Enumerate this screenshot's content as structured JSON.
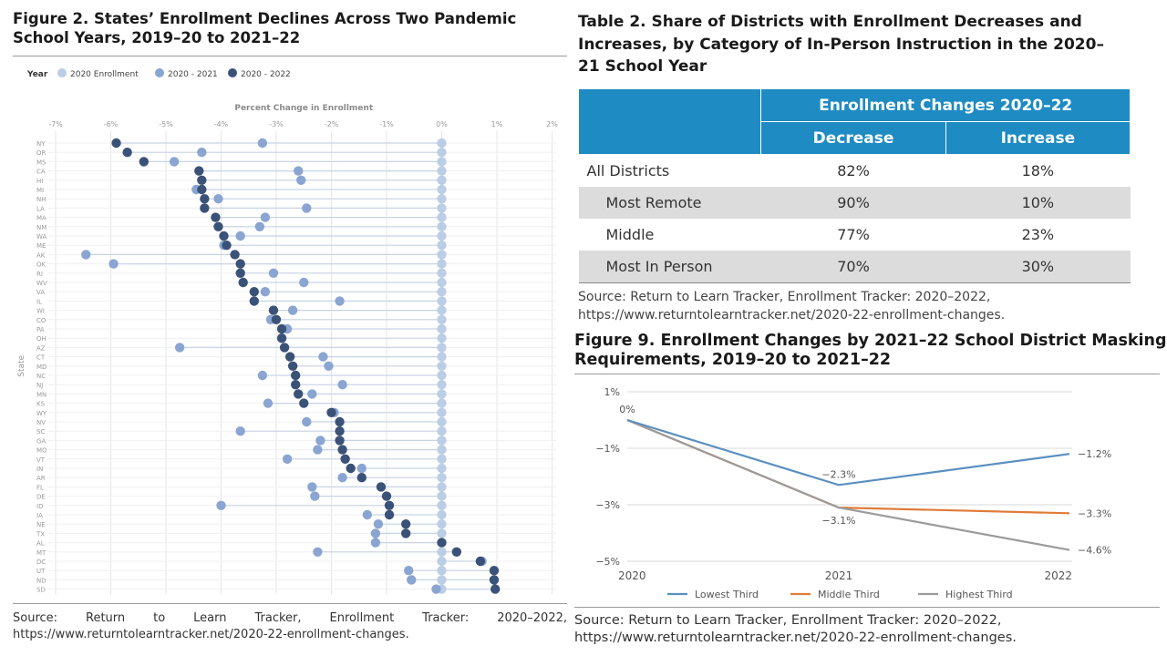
{
  "fig2": {
    "title": "Figure 2. States’ Enrollment Declines Across Two Pandemic School Years, 2019–20 to 2021–22",
    "source": "Source: Return to Learn Tracker, Enrollment Tracker: 2020–2022, https://www.returntolearntracker.net/2020-22-enrollment-changes."
  },
  "table2": {
    "title": "Table 2. Share of Districts with Enrollment Decreases and Increases, by Category of In-Person Instruction in the 2020–21 School Year",
    "header_group": "Enrollment Changes 2020–22",
    "col_decrease": "Decrease",
    "col_increase": "Increase",
    "rows": [
      {
        "label": "All Districts",
        "decrease": "82%",
        "increase": "18%"
      },
      {
        "label": "Most Remote",
        "decrease": "90%",
        "increase": "10%"
      },
      {
        "label": "Middle",
        "decrease": "77%",
        "increase": "23%"
      },
      {
        "label": "Most In Person",
        "decrease": "70%",
        "increase": "30%"
      }
    ],
    "source": "Source: Return to Learn Tracker, Enrollment Tracker: 2020–2022, https://www.returntolearntracker.net/2020-22-enrollment-changes."
  },
  "fig9": {
    "title": "Figure 9. Enrollment Changes by 2021–22 School District Masking Requirements, 2019–20 to 2021–22",
    "source": "Source: Return to Learn Tracker, Enrollment Tracker: 2020–2022, https://www.returntolearntracker.net/2020-22-enrollment-changes."
  },
  "chart_data": [
    {
      "type": "scatter",
      "xlabel": "Percent Change in Enrollment",
      "ylabel": "State",
      "legend_title": "Year",
      "legend_position": "top-left",
      "xlim": [
        -7,
        2
      ],
      "x_ticks": [
        "-7%",
        "-6%",
        "-5%",
        "-4%",
        "-3%",
        "-2%",
        "-1%",
        "0%",
        "1%",
        "2%"
      ],
      "grid": true,
      "colors": {
        "2020 Enrollment": "#bccde6",
        "2020 - 2021": "#8aa5d2",
        "2020 - 2022": "#3b5278"
      },
      "series_names": [
        "2020 Enrollment",
        "2020 - 2021",
        "2020 - 2022"
      ],
      "states": [
        "NY",
        "OR",
        "MS",
        "CA",
        "HI",
        "MI",
        "NH",
        "LA",
        "MA",
        "NM",
        "WA",
        "ME",
        "AK",
        "OK",
        "RI",
        "WV",
        "VA",
        "IL",
        "WI",
        "CO",
        "PA",
        "OH",
        "AZ",
        "CT",
        "MD",
        "NC",
        "NJ",
        "MN",
        "KS",
        "WY",
        "NV",
        "SC",
        "GA",
        "MO",
        "VT",
        "IN",
        "AR",
        "FL",
        "DE",
        "ID",
        "IA",
        "NE",
        "TX",
        "AL",
        "MT",
        "DC",
        "UT",
        "ND",
        "SD"
      ],
      "series": [
        {
          "name": "2020 Enrollment",
          "values": [
            0,
            0,
            0,
            0,
            0,
            0,
            0,
            0,
            0,
            0,
            0,
            0,
            0,
            0,
            0,
            0,
            0,
            0,
            0,
            0,
            0,
            0,
            0,
            0,
            0,
            0,
            0,
            0,
            0,
            0,
            0,
            0,
            0,
            0,
            0,
            0,
            0,
            0,
            0,
            0,
            0,
            0,
            0,
            0,
            0,
            0,
            0,
            0,
            0
          ]
        },
        {
          "name": "2020 - 2021",
          "values": [
            -3.25,
            -4.35,
            -4.85,
            -2.6,
            -2.55,
            -4.45,
            -4.05,
            -2.45,
            -3.2,
            -3.3,
            -3.65,
            -3.95,
            -6.45,
            -5.95,
            -3.05,
            -2.5,
            -3.2,
            -1.85,
            -2.7,
            -3.1,
            -2.8,
            -2.9,
            -4.75,
            -2.15,
            -2.05,
            -3.25,
            -1.8,
            -2.35,
            -3.15,
            -1.95,
            -2.45,
            -3.65,
            -2.2,
            -2.25,
            -2.8,
            -1.45,
            -1.8,
            -2.35,
            -2.3,
            -4.0,
            -1.35,
            -1.15,
            -1.2,
            -1.2,
            -2.25,
            0.73,
            -0.6,
            -0.55,
            -0.1
          ]
        },
        {
          "name": "2020 - 2022",
          "values": [
            -5.9,
            -5.7,
            -5.4,
            -4.4,
            -4.35,
            -4.35,
            -4.3,
            -4.3,
            -4.1,
            -4.05,
            -3.95,
            -3.9,
            -3.75,
            -3.65,
            -3.65,
            -3.6,
            -3.4,
            -3.4,
            -3.05,
            -3.0,
            -2.9,
            -2.9,
            -2.85,
            -2.75,
            -2.7,
            -2.65,
            -2.65,
            -2.6,
            -2.5,
            -2.0,
            -1.85,
            -1.85,
            -1.85,
            -1.8,
            -1.75,
            -1.65,
            -1.45,
            -1.1,
            -1.0,
            -0.95,
            -0.95,
            -0.65,
            -0.65,
            0,
            0.27,
            0.7,
            0.95,
            0.95,
            0.97
          ]
        }
      ]
    },
    {
      "type": "line",
      "categories": [
        "2020",
        "2021",
        "2022"
      ],
      "ylim": [
        -5,
        1
      ],
      "y_ticks": [
        "1%",
        "−1%",
        "−3%",
        "−5%"
      ],
      "grid": true,
      "legend_position": "bottom",
      "series": [
        {
          "name": "Lowest Third",
          "values": [
            0,
            -2.3,
            -1.2
          ],
          "color": "#5b8fc0",
          "labels": [
            "0%",
            "−2.3%",
            "−1.2%"
          ]
        },
        {
          "name": "Middle Third",
          "values": [
            0,
            -3.1,
            -3.3
          ],
          "color": "#e07b39",
          "labels": [
            "",
            "",
            "−3.3%"
          ]
        },
        {
          "name": "Highest Third",
          "values": [
            0,
            -3.1,
            -4.6
          ],
          "color": "#9b9b9b",
          "labels": [
            "",
            "−3.1%",
            "−4.6%"
          ]
        }
      ]
    }
  ]
}
